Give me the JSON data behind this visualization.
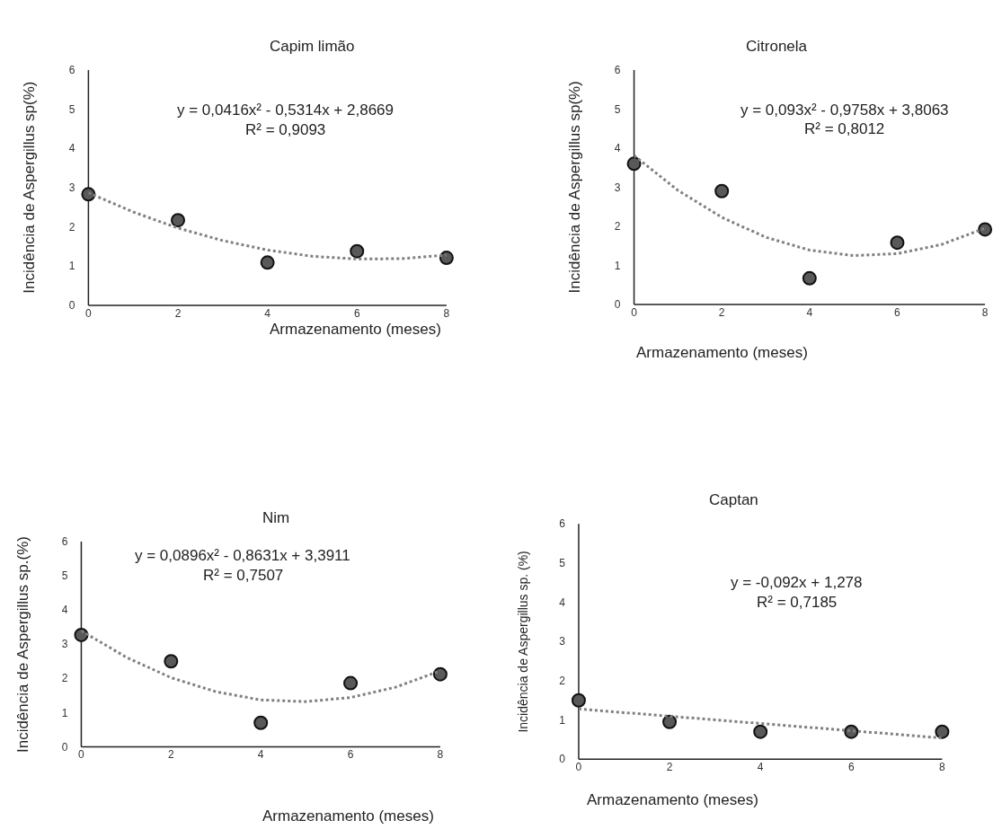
{
  "chart_data": [
    {
      "type": "scatter",
      "title": "Capim limão",
      "xlabel": "Armazenamento (meses)",
      "ylabel": "Incidência de Aspergillus sp(%)",
      "x": [
        0,
        2,
        4,
        6,
        8
      ],
      "xlim": [
        0,
        8
      ],
      "xticks": [
        0,
        2,
        4,
        6,
        8
      ],
      "ylim": [
        0,
        6
      ],
      "yticks": [
        0,
        1,
        2,
        3,
        4,
        5,
        6
      ],
      "grid": false,
      "marker": "circle",
      "annotations": [
        "y = 0,0416x² - 0,5314x + 2,8669",
        "R² = 0,9093"
      ],
      "series": [
        {
          "color": "#595959",
          "values": [
            2.83,
            2.17,
            1.09,
            1.38,
            1.21
          ]
        },
        {
          "type": "line",
          "marker": "none",
          "color": "#808080",
          "line_style": "dotted",
          "x": [
            0,
            1,
            2,
            3,
            4,
            5,
            6,
            7,
            8
          ],
          "values": [
            2.87,
            2.38,
            1.97,
            1.65,
            1.41,
            1.25,
            1.18,
            1.19,
            1.28
          ]
        }
      ]
    },
    {
      "type": "scatter",
      "title": "Citronela",
      "xlabel": "Armazenamento (meses)",
      "ylabel": "Incidência de Aspergillus sp(%)",
      "x": [
        0,
        2,
        4,
        6,
        8
      ],
      "xlim": [
        0,
        8
      ],
      "xticks": [
        0,
        2,
        4,
        6,
        8
      ],
      "ylim": [
        0,
        6
      ],
      "yticks": [
        0,
        1,
        2,
        3,
        4,
        5,
        6
      ],
      "grid": false,
      "marker": "circle",
      "annotations": [
        "y = 0,093x² - 0,9758x + 3,8063",
        "R² = 0,8012"
      ],
      "series": [
        {
          "color": "#595959",
          "values": [
            3.6,
            2.9,
            0.67,
            1.58,
            1.92
          ]
        },
        {
          "type": "line",
          "marker": "none",
          "color": "#808080",
          "line_style": "dotted",
          "x": [
            0,
            1,
            2,
            3,
            4,
            5,
            6,
            7,
            8
          ],
          "values": [
            3.81,
            2.92,
            2.23,
            1.72,
            1.39,
            1.25,
            1.3,
            1.53,
            1.95
          ]
        }
      ]
    },
    {
      "type": "scatter",
      "title": "Nim",
      "xlabel": "Armazenamento (meses)",
      "ylabel": "Incidência de Aspergillus sp.(%)",
      "x": [
        0,
        2,
        4,
        6,
        8
      ],
      "xlim": [
        0,
        8
      ],
      "xticks": [
        0,
        2,
        4,
        6,
        8
      ],
      "ylim": [
        0,
        6
      ],
      "yticks": [
        0,
        1,
        2,
        3,
        4,
        5,
        6
      ],
      "grid": false,
      "marker": "circle",
      "annotations": [
        "y = 0,0896x² - 0,8631x + 3,3911",
        "R² = 0,7507"
      ],
      "series": [
        {
          "color": "#595959",
          "values": [
            3.27,
            2.5,
            0.7,
            1.86,
            2.12
          ]
        },
        {
          "type": "line",
          "marker": "none",
          "color": "#808080",
          "line_style": "dotted",
          "x": [
            0,
            1,
            2,
            3,
            4,
            5,
            6,
            7,
            8
          ],
          "values": [
            3.39,
            2.62,
            2.02,
            1.61,
            1.37,
            1.32,
            1.44,
            1.74,
            2.22
          ]
        }
      ]
    },
    {
      "type": "scatter",
      "title": "Captan",
      "xlabel": "Armazenamento (meses)",
      "ylabel": "Incidência de Aspergillus sp. (%)",
      "x": [
        0,
        2,
        4,
        6,
        8
      ],
      "xlim": [
        0,
        8
      ],
      "xticks": [
        0,
        2,
        4,
        6,
        8
      ],
      "ylim": [
        0,
        6
      ],
      "yticks": [
        0,
        1,
        2,
        3,
        4,
        5,
        6
      ],
      "grid": false,
      "marker": "circle",
      "annotations": [
        "y = -0,092x + 1,278",
        "R² = 0,7185"
      ],
      "series": [
        {
          "color": "#595959",
          "values": [
            1.5,
            0.95,
            0.7,
            0.7,
            0.7
          ]
        },
        {
          "type": "line",
          "marker": "none",
          "color": "#808080",
          "line_style": "dotted",
          "x": [
            0,
            8
          ],
          "values": [
            1.28,
            0.54
          ]
        }
      ]
    }
  ]
}
